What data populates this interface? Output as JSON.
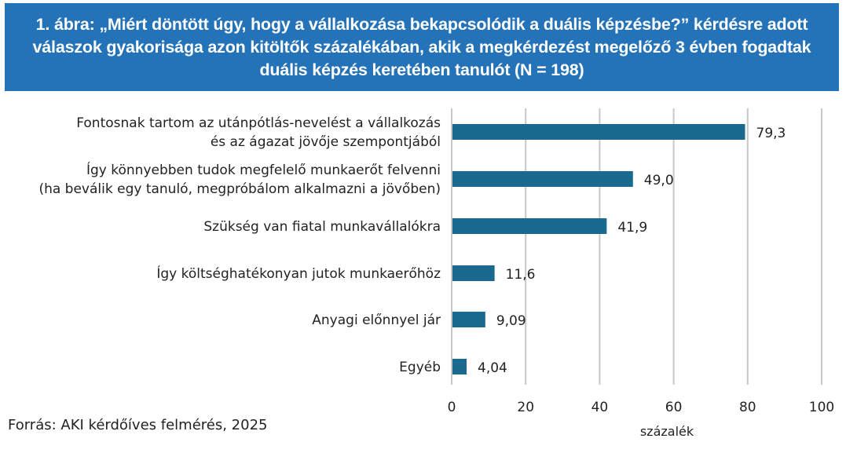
{
  "title": "1. ábra: „Miért döntött úgy, hogy a vállalkozása bekapcsolódik a duális képzésbe?” kérdésre adott válaszok gyakorisága azon kitöltők százalékában, akik a megkérdezést megelőző 3 évben fogadtak duális képzés keretében tanulót (N = 198)",
  "source": "Forrás: AKI kérdőíves felmérés, 2025",
  "colors": {
    "title_bg": "#2472b8",
    "bar": "#1a6a8f",
    "grid": "#c8c8c8"
  },
  "chart_data": {
    "type": "bar",
    "orientation": "horizontal",
    "categories": [
      [
        "Fontosnak tartom az utánpótlás-nevelést a vállalkozás",
        "és az ágazat jövője szempontjából"
      ],
      [
        "Így könnyebben tudok megfelelő munkaerőt felvenni",
        "(ha beválik egy tanuló, megpróbálom alkalmazni a jövőben)"
      ],
      [
        "Szükség van fiatal munkavállalókra"
      ],
      [
        "Így költséghatékonyan jutok munkaerőhöz"
      ],
      [
        "Anyagi előnnyel jár"
      ],
      [
        "Egyéb"
      ]
    ],
    "values": [
      79.3,
      49.0,
      41.9,
      11.6,
      9.09,
      4.04
    ],
    "value_labels": [
      "79,3",
      "49,0",
      "41,9",
      "11,6",
      "9,09",
      "4,04"
    ],
    "xlabel": "százalék",
    "xlim": [
      0,
      100
    ],
    "xticks": [
      0,
      20,
      40,
      60,
      80,
      100
    ],
    "grid": "vertical"
  }
}
